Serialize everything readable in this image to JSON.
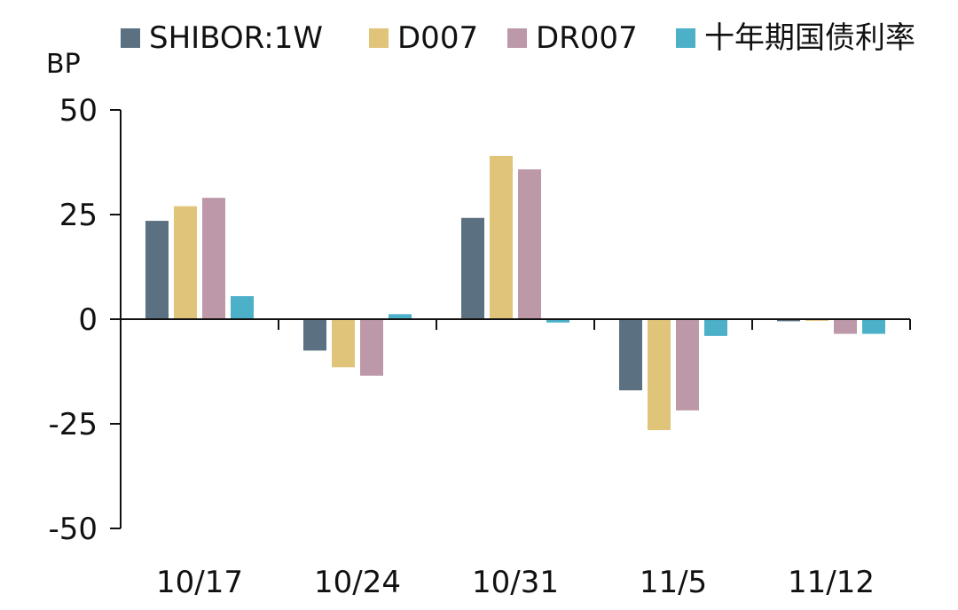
{
  "chart_data": {
    "type": "bar",
    "unit_label": "BP",
    "categories": [
      "10/17",
      "10/24",
      "10/31",
      "11/5",
      "11/12"
    ],
    "ylim": [
      -50,
      50
    ],
    "yticks": [
      50,
      25,
      0,
      -25,
      -50
    ],
    "ytick_labels": [
      "50",
      "25",
      "0",
      "-25",
      "-50"
    ],
    "legend_position": "top",
    "grid": false,
    "series": [
      {
        "name": "SHIBOR:1W",
        "color": "#5b7080",
        "values": [
          23.5,
          -7.5,
          24.2,
          -17.0,
          -0.5
        ]
      },
      {
        "name": "D007",
        "color": "#e0c47a",
        "values": [
          27.0,
          -11.5,
          39.0,
          -26.5,
          -0.4
        ]
      },
      {
        "name": "DR007",
        "color": "#bc98a8",
        "values": [
          29.0,
          -13.5,
          35.8,
          -21.8,
          -3.5
        ]
      },
      {
        "name": "十年期国债利率",
        "color": "#4bb0c8",
        "values": [
          5.5,
          1.2,
          -0.8,
          -4.0,
          -3.5
        ]
      }
    ]
  }
}
